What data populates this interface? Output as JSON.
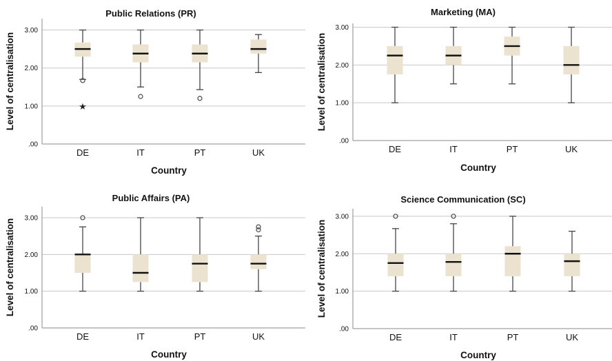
{
  "chart_data": [
    {
      "type": "boxplot",
      "title": "Public Relations (PR)",
      "xlabel": "Country",
      "ylabel": "Level of centralisation",
      "categories": [
        "DE",
        "IT",
        "PT",
        "UK"
      ],
      "yticks": [
        ".00",
        "1.00",
        "2.00",
        "3.00"
      ],
      "ylim": [
        0,
        3.3
      ],
      "boxes": [
        {
          "min": 1.7,
          "q1": 2.3,
          "median": 2.5,
          "q3": 2.67,
          "max": 3.0,
          "outliers": [
            1.67
          ],
          "extremes": [
            1.0
          ]
        },
        {
          "min": 1.5,
          "q1": 2.15,
          "median": 2.38,
          "q3": 2.62,
          "max": 3.0,
          "outliers": [
            1.25
          ],
          "extremes": []
        },
        {
          "min": 1.43,
          "q1": 2.15,
          "median": 2.38,
          "q3": 2.62,
          "max": 3.0,
          "outliers": [
            1.2
          ],
          "extremes": []
        },
        {
          "min": 1.88,
          "q1": 2.38,
          "median": 2.5,
          "q3": 2.75,
          "max": 2.88,
          "outliers": [],
          "extremes": []
        }
      ]
    },
    {
      "type": "boxplot",
      "title": "Marketing (MA)",
      "xlabel": "Country",
      "ylabel": "Level of centralisation",
      "categories": [
        "DE",
        "IT",
        "PT",
        "UK"
      ],
      "yticks": [
        ".00",
        "1.00",
        "2.00",
        "3.00"
      ],
      "ylim": [
        0,
        3.1
      ],
      "boxes": [
        {
          "min": 1.0,
          "q1": 1.75,
          "median": 2.25,
          "q3": 2.5,
          "max": 3.0,
          "outliers": [],
          "extremes": []
        },
        {
          "min": 1.5,
          "q1": 2.0,
          "median": 2.25,
          "q3": 2.5,
          "max": 3.0,
          "outliers": [],
          "extremes": []
        },
        {
          "min": 1.5,
          "q1": 2.25,
          "median": 2.5,
          "q3": 2.75,
          "max": 3.0,
          "outliers": [],
          "extremes": []
        },
        {
          "min": 1.0,
          "q1": 1.75,
          "median": 2.0,
          "q3": 2.5,
          "max": 3.0,
          "outliers": [],
          "extremes": []
        }
      ]
    },
    {
      "type": "boxplot",
      "title": "Public Affairs (PA)",
      "xlabel": "Country",
      "ylabel": "Level of centralisation",
      "categories": [
        "DE",
        "IT",
        "PT",
        "UK"
      ],
      "yticks": [
        ".00",
        "1.00",
        "2.00",
        "3.00"
      ],
      "ylim": [
        0,
        3.3
      ],
      "boxes": [
        {
          "min": 1.0,
          "q1": 1.5,
          "median": 2.0,
          "q3": 2.0,
          "max": 2.75,
          "outliers": [
            3.0
          ],
          "extremes": []
        },
        {
          "min": 1.0,
          "q1": 1.25,
          "median": 1.5,
          "q3": 2.0,
          "max": 3.0,
          "outliers": [],
          "extremes": []
        },
        {
          "min": 1.0,
          "q1": 1.25,
          "median": 1.75,
          "q3": 2.0,
          "max": 3.0,
          "outliers": [],
          "extremes": []
        },
        {
          "min": 1.0,
          "q1": 1.6,
          "median": 1.75,
          "q3": 2.0,
          "max": 2.5,
          "outliers": [
            2.67,
            2.75
          ],
          "extremes": []
        }
      ]
    },
    {
      "type": "boxplot",
      "title": "Science Communication (SC)",
      "xlabel": "Country",
      "ylabel": "Level of centralisation",
      "categories": [
        "DE",
        "IT",
        "PT",
        "UK"
      ],
      "yticks": [
        ".00",
        "1.00",
        "2.00",
        "3.00"
      ],
      "ylim": [
        0,
        3.2
      ],
      "boxes": [
        {
          "min": 1.0,
          "q1": 1.4,
          "median": 1.75,
          "q3": 2.0,
          "max": 2.67,
          "outliers": [
            3.0
          ],
          "extremes": []
        },
        {
          "min": 1.0,
          "q1": 1.4,
          "median": 1.78,
          "q3": 2.0,
          "max": 2.8,
          "outliers": [
            3.0
          ],
          "extremes": []
        },
        {
          "min": 1.0,
          "q1": 1.4,
          "median": 2.0,
          "q3": 2.2,
          "max": 3.0,
          "outliers": [],
          "extremes": []
        },
        {
          "min": 1.0,
          "q1": 1.4,
          "median": 1.8,
          "q3": 2.0,
          "max": 2.6,
          "outliers": [],
          "extremes": []
        }
      ]
    }
  ]
}
